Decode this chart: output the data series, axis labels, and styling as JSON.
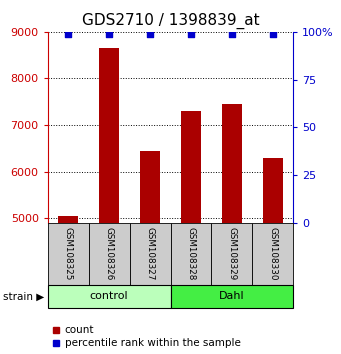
{
  "title": "GDS2710 / 1398839_at",
  "samples": [
    "GSM108325",
    "GSM108326",
    "GSM108327",
    "GSM108328",
    "GSM108329",
    "GSM108330"
  ],
  "counts": [
    5050,
    8650,
    6450,
    7300,
    7450,
    6300
  ],
  "percentiles": [
    99,
    99,
    99,
    99,
    99,
    99
  ],
  "ylim_left": [
    4900,
    9000
  ],
  "ylim_right": [
    0,
    100
  ],
  "yticks_left": [
    5000,
    6000,
    7000,
    8000,
    9000
  ],
  "yticks_right": [
    0,
    25,
    50,
    75,
    100
  ],
  "groups": [
    {
      "label": "control",
      "start": 0,
      "end": 3,
      "color": "#bbffbb"
    },
    {
      "label": "Dahl",
      "start": 3,
      "end": 6,
      "color": "#44ee44"
    }
  ],
  "bar_color": "#aa0000",
  "blue_color": "#0000cc",
  "bar_width": 0.5,
  "title_color": "#000000",
  "left_tick_color": "#cc0000",
  "right_tick_color": "#0000cc",
  "label_box_color": "#cccccc",
  "strain_label": "strain",
  "legend_count_label": "count",
  "legend_percentile_label": "percentile rank within the sample"
}
